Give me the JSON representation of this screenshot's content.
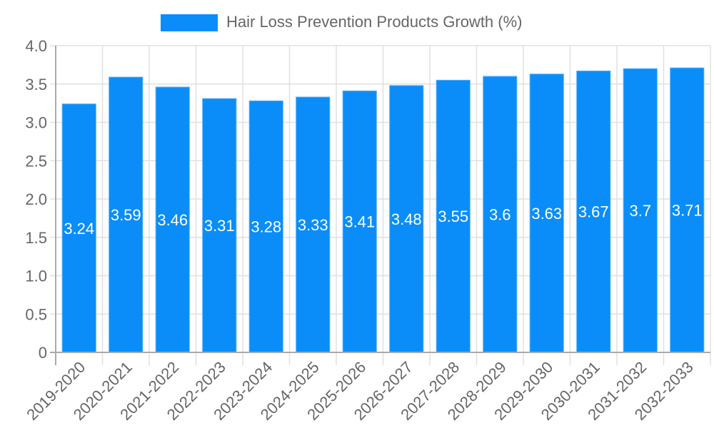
{
  "legend": {
    "label": "Hair Loss Prevention Products Growth (%)",
    "color": "#0a8df8"
  },
  "chart_data": {
    "type": "bar",
    "title": "",
    "xlabel": "",
    "ylabel": "",
    "categories": [
      "2019-2020",
      "2020-2021",
      "2021-2022",
      "2022-2023",
      "2023-2024",
      "2024-2025",
      "2025-2026",
      "2026-2027",
      "2027-2028",
      "2028-2029",
      "2029-2030",
      "2030-2031",
      "2031-2032",
      "2032-2033"
    ],
    "series": [
      {
        "name": "Hair Loss Prevention Products Growth (%)",
        "color": "#0a8df8",
        "values": [
          3.24,
          3.59,
          3.46,
          3.31,
          3.28,
          3.33,
          3.41,
          3.48,
          3.55,
          3.6,
          3.63,
          3.67,
          3.7,
          3.71
        ],
        "labels": [
          "3.24",
          "3.59",
          "3.46",
          "3.31",
          "3.28",
          "3.33",
          "3.41",
          "3.48",
          "3.55",
          "3.6",
          "3.63",
          "3.67",
          "3.7",
          "3.71"
        ]
      }
    ],
    "ylim": [
      0,
      4.0
    ],
    "yticks": [
      0,
      0.5,
      1.0,
      1.5,
      2.0,
      2.5,
      3.0,
      3.5,
      4.0
    ],
    "ytick_labels": [
      "0",
      "0.5",
      "1.0",
      "1.5",
      "2.0",
      "2.5",
      "3.0",
      "3.5",
      "4.0"
    ],
    "grid": true,
    "legend_position": "top",
    "data_labels": "inside-bar-middle",
    "colors": {
      "bar": "#0a8df8",
      "grid": "#e0e0e0",
      "axis": "#aaaaaa",
      "tick_text": "#666666",
      "data_label": "#ffffff"
    }
  }
}
